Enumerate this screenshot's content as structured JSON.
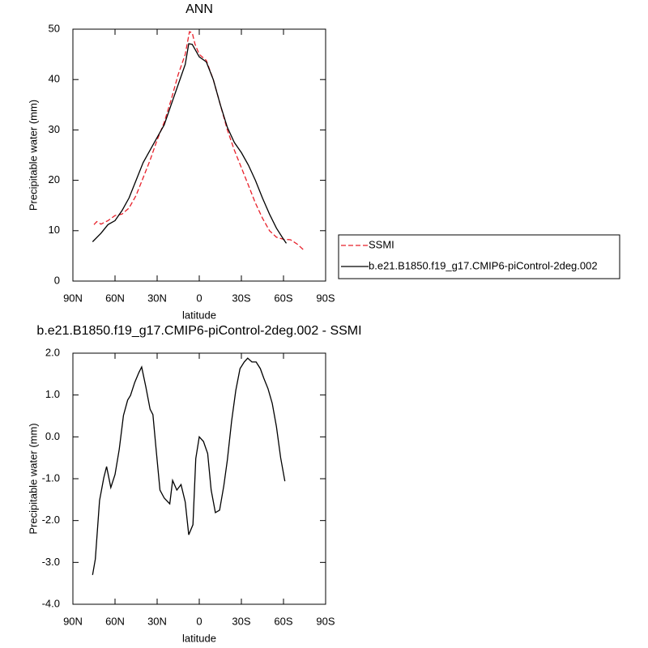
{
  "chart_data": [
    {
      "type": "line",
      "title": "ANN",
      "xlabel": "latitude",
      "ylabel": "Precipitable water (mm)",
      "xlim": [
        90,
        -90
      ],
      "xticks": [
        {
          "value": 90,
          "label": "90N"
        },
        {
          "value": 60,
          "label": "60N"
        },
        {
          "value": 30,
          "label": "30N"
        },
        0,
        {
          "value": -30,
          "label": "30S"
        },
        {
          "value": -60,
          "label": "60S"
        },
        {
          "value": -90,
          "label": "90S"
        }
      ],
      "ylim": [
        0,
        50
      ],
      "yticks": [
        0,
        10,
        20,
        30,
        40,
        50
      ],
      "legend": "right",
      "series": [
        {
          "name": "SSMI",
          "color": "#e8202a",
          "linestyle": "dashed",
          "x": [
            75,
            73,
            70,
            65,
            60,
            55,
            50,
            45,
            40,
            35,
            30,
            25,
            20,
            15,
            10,
            7,
            5,
            3,
            0,
            -5,
            -10,
            -15,
            -20,
            -25,
            -30,
            -35,
            -40,
            -45,
            -50,
            -55,
            -60,
            -65,
            -70,
            -75
          ],
          "values": [
            11.2,
            11.8,
            11.3,
            12,
            13,
            13.3,
            14.5,
            17,
            20.5,
            24,
            28,
            31.5,
            36,
            41,
            45,
            49.5,
            49.3,
            47,
            45,
            43.8,
            40,
            35,
            30,
            26,
            22.5,
            19,
            15.5,
            12.5,
            10,
            8.7,
            8.3,
            8.2,
            7.3,
            6
          ]
        },
        {
          "name": "b.e21.B1850.f19_g17.CMIP6-piControl-2deg.002",
          "color": "#000000",
          "linestyle": "solid",
          "x": [
            76,
            70,
            65,
            60,
            55,
            50,
            45,
            40,
            35,
            30,
            25,
            20,
            15,
            10,
            7.5,
            5,
            0,
            -5,
            -10,
            -15,
            -20,
            -25,
            -30,
            -35,
            -40,
            -45,
            -50,
            -55,
            -60,
            -62
          ],
          "values": [
            7.8,
            9.5,
            11.2,
            12,
            14,
            16.5,
            20,
            23.5,
            26,
            28.5,
            31,
            35,
            39,
            43,
            47.1,
            47,
            44.5,
            43.5,
            40,
            35,
            30.5,
            27.5,
            25.5,
            23,
            20,
            16.5,
            13.3,
            10.5,
            8.3,
            7.5
          ]
        }
      ]
    },
    {
      "type": "line",
      "title": "b.e21.B1850.f19_g17.CMIP6-piControl-2deg.002 - SSMI",
      "xlabel": "latitude",
      "ylabel": "Precipitable water (mm)",
      "xlim": [
        90,
        -90
      ],
      "xticks": [
        {
          "value": 90,
          "label": "90N"
        },
        {
          "value": 60,
          "label": "60N"
        },
        {
          "value": 30,
          "label": "30N"
        },
        0,
        {
          "value": -30,
          "label": "30S"
        },
        {
          "value": -60,
          "label": "60S"
        },
        {
          "value": -90,
          "label": "90S"
        }
      ],
      "ylim": [
        -4,
        2
      ],
      "yticks": [
        {
          "value": 2,
          "label": "2.0"
        },
        {
          "value": 1,
          "label": "1.0"
        },
        {
          "value": 0,
          "label": "0.0"
        },
        {
          "value": -1,
          "label": "-1.0"
        },
        {
          "value": -2,
          "label": "-2.0"
        },
        {
          "value": -3,
          "label": "-3.0"
        },
        {
          "value": -4,
          "label": "-4.0"
        }
      ],
      "series": [
        {
          "color": "#000000",
          "linestyle": "solid",
          "x": [
            76,
            74,
            71,
            68,
            66,
            63,
            60,
            57,
            54,
            51,
            49,
            46,
            43,
            41,
            38,
            35,
            33,
            31,
            28,
            25,
            21,
            19,
            16,
            13,
            10,
            7.5,
            4.5,
            2.5,
            0,
            -3,
            -6,
            -8.5,
            -11.5,
            -14.5,
            -17.5,
            -20,
            -23,
            -26,
            -29,
            -32,
            -34.5,
            -37.5,
            -40.5,
            -43.5,
            -46,
            -49,
            -52,
            -55,
            -58,
            -61
          ],
          "values": [
            -3.3,
            -2.92,
            -1.52,
            -0.98,
            -0.71,
            -1.21,
            -0.9,
            -0.3,
            0.51,
            0.88,
            0.99,
            1.3,
            1.54,
            1.67,
            1.19,
            0.66,
            0.53,
            -0.21,
            -1.27,
            -1.46,
            -1.6,
            -1.04,
            -1.27,
            -1.14,
            -1.56,
            -2.34,
            -2.1,
            -0.52,
            0,
            -0.11,
            -0.4,
            -1.27,
            -1.81,
            -1.75,
            -1.17,
            -0.55,
            0.37,
            1.11,
            1.63,
            1.79,
            1.88,
            1.79,
            1.79,
            1.63,
            1.4,
            1.15,
            0.8,
            0.24,
            -0.5,
            -1.06
          ]
        }
      ]
    }
  ]
}
